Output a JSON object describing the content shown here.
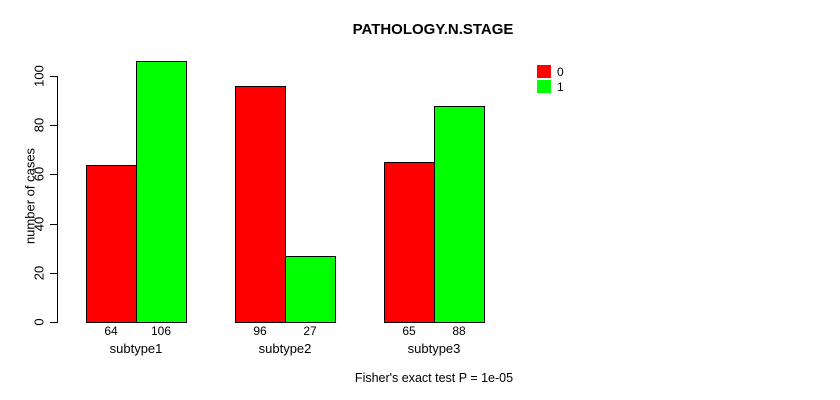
{
  "chart_data": {
    "type": "bar",
    "title": "PATHOLOGY.N.STAGE",
    "ylabel": "number of cases",
    "xlabel": "",
    "categories": [
      "subtype1",
      "subtype2",
      "subtype3"
    ],
    "series": [
      {
        "name": "0",
        "color": "#ff0000",
        "values": [
          64,
          96,
          65
        ]
      },
      {
        "name": "1",
        "color": "#00ff00",
        "values": [
          106,
          27,
          88
        ]
      }
    ],
    "yticks": [
      0,
      20,
      40,
      60,
      80,
      100
    ],
    "ylim": [
      0,
      108
    ],
    "bar_value_labels": [
      [
        64,
        106
      ],
      [
        96,
        27
      ],
      [
        65,
        88
      ]
    ],
    "legend_position": "top-right",
    "grid": false,
    "annotation": "Fisher's exact test P = 1e-05"
  }
}
